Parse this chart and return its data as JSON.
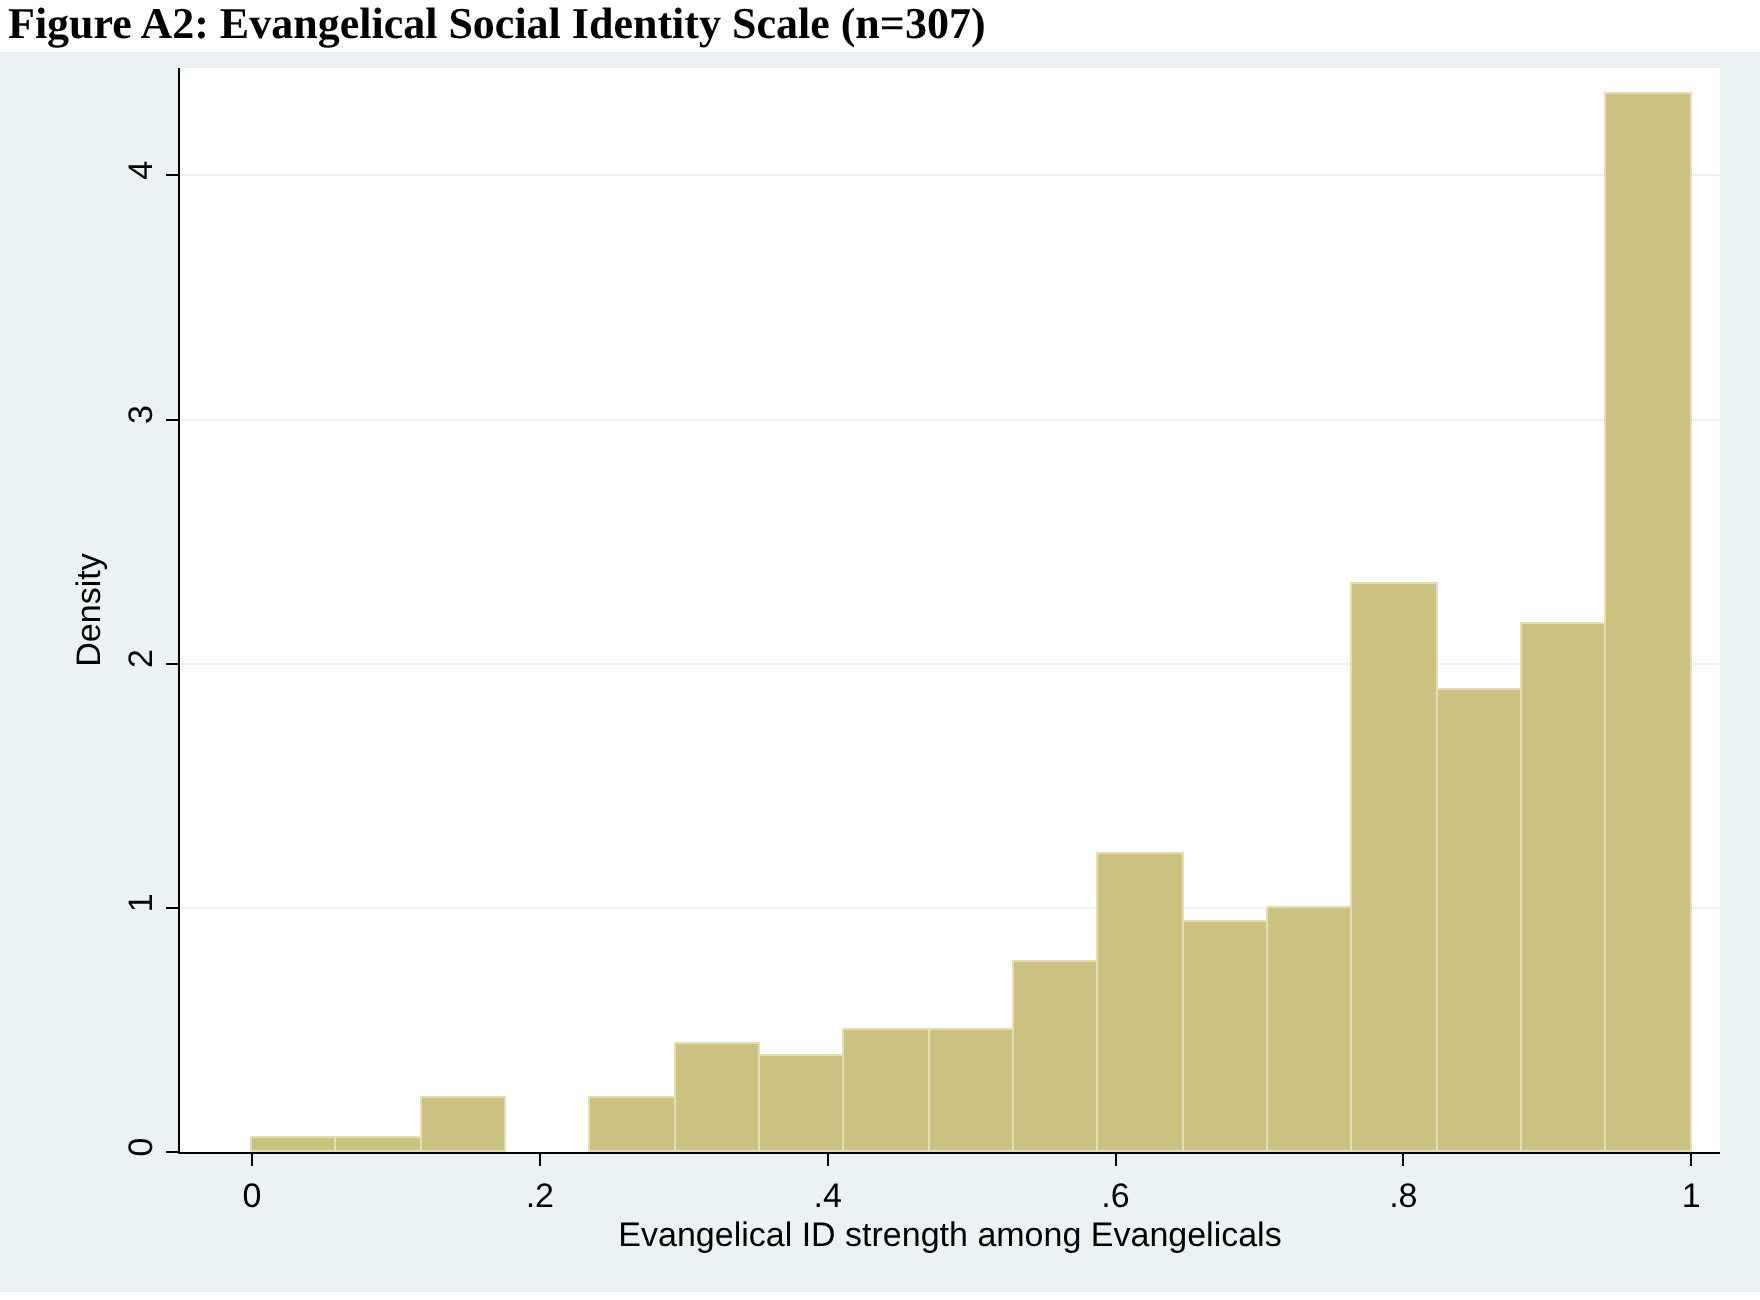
{
  "chart_data": {
    "type": "histogram",
    "title": "Figure A2: Evangelical Social Identity Scale (n=307)",
    "xlabel": "Evangelical ID strength among Evangelicals",
    "ylabel": "Density",
    "bins": [
      0,
      0.0588,
      0.1176,
      0.1765,
      0.2353,
      0.2941,
      0.3529,
      0.4118,
      0.4706,
      0.5294,
      0.5882,
      0.6471,
      0.7059,
      0.7647,
      0.8235,
      0.8824,
      0.9412,
      1
    ],
    "values": [
      0.06,
      0.06,
      0.22,
      0,
      0.22,
      0.44,
      0.39,
      0.5,
      0.5,
      0.78,
      1.22,
      0.94,
      1.0,
      2.33,
      1.89,
      2.16,
      4.33
    ],
    "color": "#cbc282",
    "xlim": [
      -0.05,
      1.02
    ],
    "xticks": [
      0,
      {
        "value": 0.2,
        "label": ".2"
      },
      {
        "value": 0.4,
        "label": ".4"
      },
      {
        "value": 0.6,
        "label": ".6"
      },
      {
        "value": 0.8,
        "label": ".8"
      },
      1
    ],
    "ylim": [
      0,
      4.44
    ],
    "yticks": [
      0,
      1,
      2,
      3,
      4
    ],
    "grid": "y"
  }
}
